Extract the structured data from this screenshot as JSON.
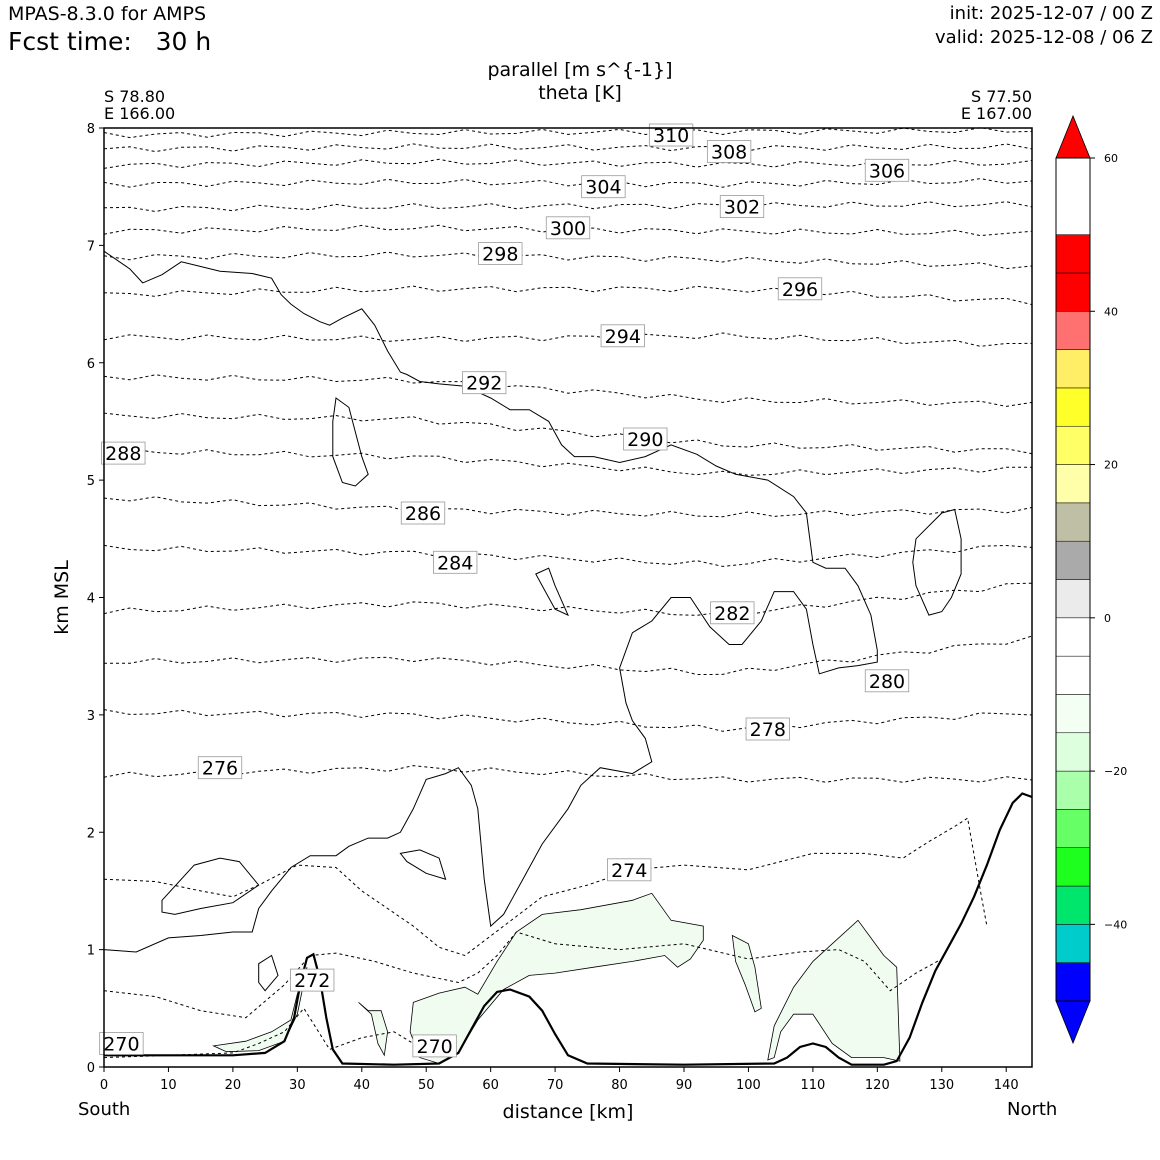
{
  "header": {
    "model": "MPAS-8.3.0 for AMPS",
    "forecast_time": "Fcst time:   30 h",
    "init": "init: 2025-12-07 / 00 Z",
    "valid": "valid: 2025-12-08 / 06 Z"
  },
  "chart_data": {
    "type": "contour",
    "title_lines": [
      "parallel [m s^{-1}]",
      "theta [K]"
    ],
    "xlabel": "distance [km]",
    "ylabel": "km MSL",
    "xlim": [
      0,
      144
    ],
    "ylim": [
      0,
      8
    ],
    "xticks": [
      0,
      10,
      20,
      30,
      40,
      50,
      60,
      70,
      80,
      90,
      100,
      110,
      120,
      130,
      140
    ],
    "yticks": [
      0,
      1,
      2,
      3,
      4,
      5,
      6,
      7,
      8
    ],
    "endpoints": {
      "left": {
        "lat": "S 78.80",
        "lon": "E 166.00",
        "direction": "South"
      },
      "right": {
        "lat": "S 77.50",
        "lon": "E 167.00",
        "direction": "North"
      }
    },
    "theta_contour_labels": [
      {
        "value": "310",
        "x": 88,
        "y": 7.94
      },
      {
        "value": "308",
        "x": 97,
        "y": 7.8
      },
      {
        "value": "306",
        "x": 121.5,
        "y": 7.64
      },
      {
        "value": "304",
        "x": 77.5,
        "y": 7.5
      },
      {
        "value": "302",
        "x": 99,
        "y": 7.33
      },
      {
        "value": "300",
        "x": 72,
        "y": 7.15
      },
      {
        "value": "298",
        "x": 61.5,
        "y": 6.93
      },
      {
        "value": "296",
        "x": 108,
        "y": 6.63
      },
      {
        "value": "294",
        "x": 80.5,
        "y": 6.23
      },
      {
        "value": "292",
        "x": 59,
        "y": 5.83
      },
      {
        "value": "290",
        "x": 84,
        "y": 5.35
      },
      {
        "value": "288",
        "x": 3,
        "y": 5.23
      },
      {
        "value": "286",
        "x": 49.5,
        "y": 4.72
      },
      {
        "value": "284",
        "x": 54.5,
        "y": 4.3
      },
      {
        "value": "282",
        "x": 97.5,
        "y": 3.87
      },
      {
        "value": "280",
        "x": 121.5,
        "y": 3.29
      },
      {
        "value": "278",
        "x": 103,
        "y": 2.88
      },
      {
        "value": "276",
        "x": 18,
        "y": 2.55
      },
      {
        "value": "274",
        "x": 81.5,
        "y": 1.68
      },
      {
        "value": "272",
        "x": 32.3,
        "y": 0.74
      },
      {
        "value": "270",
        "x": 2.7,
        "y": 0.2
      },
      {
        "value": "270",
        "x": 51.3,
        "y": 0.18
      }
    ],
    "colorbar": {
      "tick_labels": [
        "60",
        "40",
        "20",
        "0",
        "−20",
        "−40"
      ],
      "tick_values": [
        60,
        40,
        20,
        0,
        -20,
        -40
      ],
      "levels": [
        -50,
        -45,
        -40,
        -35,
        -30,
        -25,
        -20,
        -15,
        -10,
        -5,
        0,
        5,
        10,
        15,
        20,
        25,
        30,
        35,
        40,
        45,
        50,
        55,
        60
      ],
      "colors": [
        "#0000ff",
        "#00cccc",
        "#00e56b",
        "#1fff1f",
        "#66ff66",
        "#aaffaa",
        "#ddffdd",
        "#f2fff2",
        "#ffffff",
        "#ffffff",
        "#ebebeb",
        "#aaaaaa",
        "#bfbfa6",
        "#ffffaa",
        "#ffff66",
        "#ffff2a",
        "#ffee66",
        "#ff7070",
        "#ff0000",
        "#ff0000"
      ],
      "under_color": "#0000ff",
      "over_color": "#ff0000"
    },
    "negative_parallel_color": "#f1fcf1",
    "terrain_line_color": "#000000"
  }
}
